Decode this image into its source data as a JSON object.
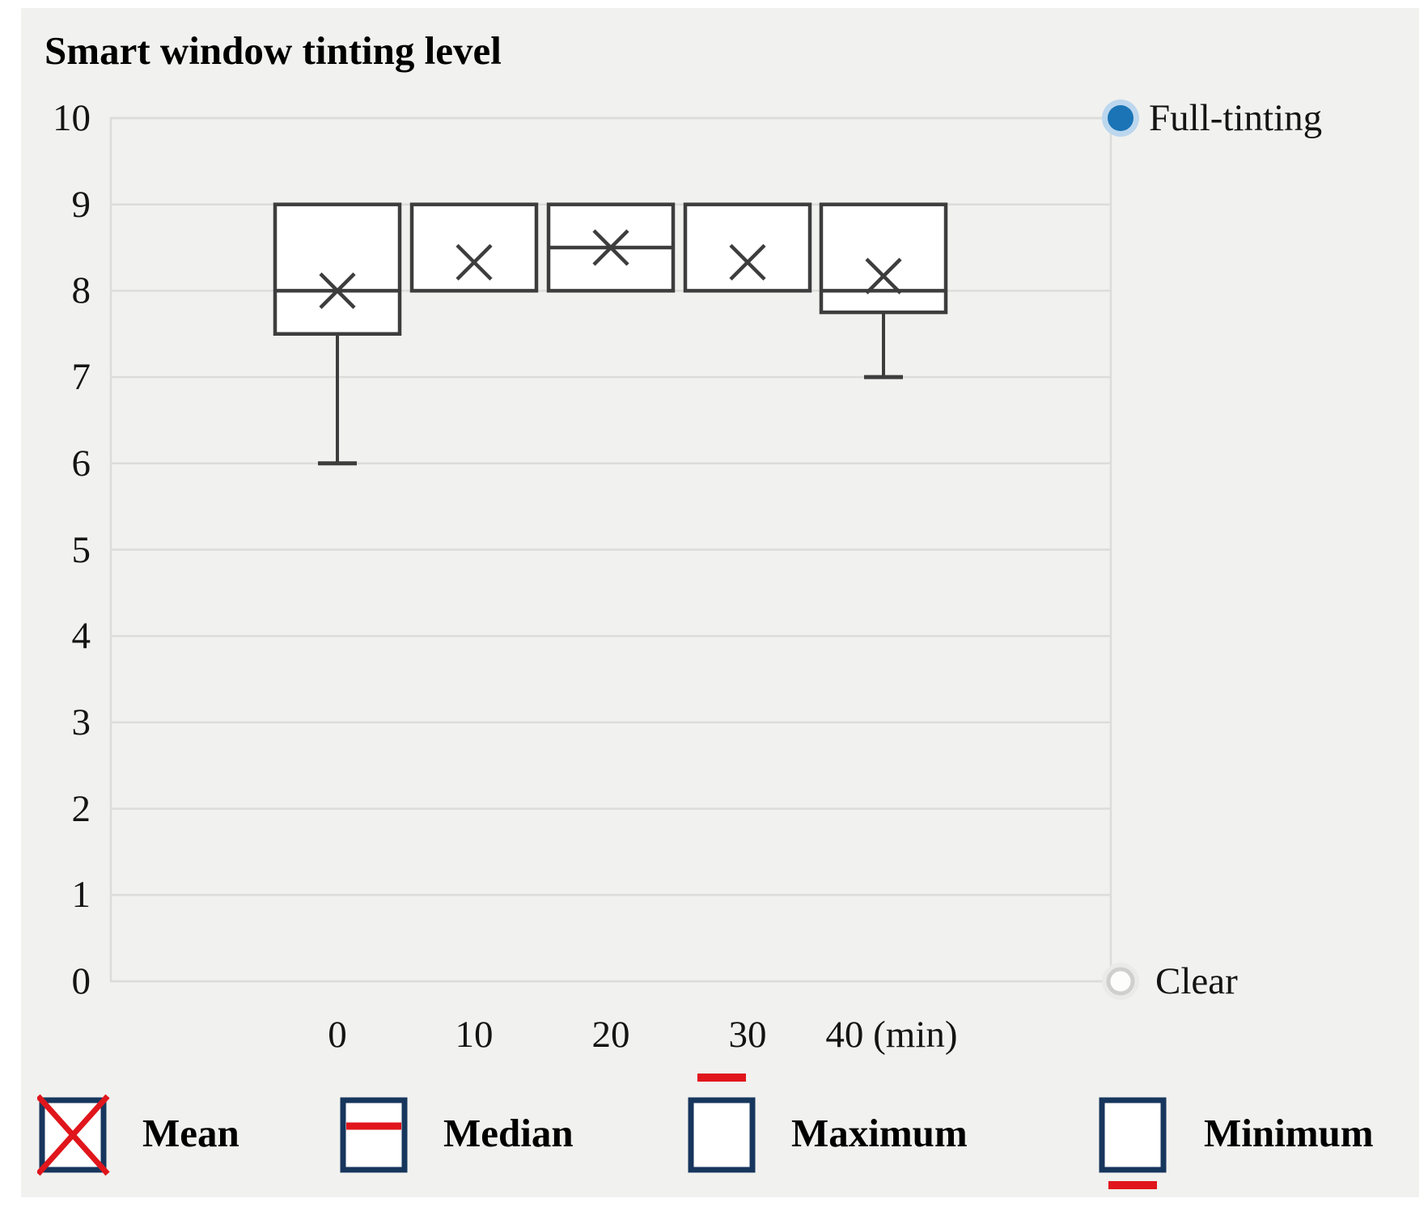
{
  "title": "Smart window tinting level",
  "chart_data": {
    "type": "boxplot",
    "title": "Smart window tinting level",
    "x_tick_labels": [
      "0",
      "10",
      "20",
      "30",
      "40 (min)"
    ],
    "categories": [
      0,
      10,
      20,
      30,
      40
    ],
    "x_unit": "min",
    "ylim": [
      0,
      10
    ],
    "y_ticks": [
      0,
      1,
      2,
      3,
      4,
      5,
      6,
      7,
      8,
      9,
      10
    ],
    "grid": true,
    "series": [
      {
        "t": 0,
        "min": 6,
        "q1": 7.5,
        "median": 8,
        "q3": 9,
        "max": 9,
        "mean": 8.0
      },
      {
        "t": 10,
        "min": 8,
        "q1": 8,
        "median": 8,
        "q3": 9,
        "max": 9,
        "mean": 8.33
      },
      {
        "t": 20,
        "min": 8,
        "q1": 8,
        "median": 8.5,
        "q3": 9,
        "max": 9,
        "mean": 8.5
      },
      {
        "t": 30,
        "min": 8,
        "q1": 8,
        "median": 8,
        "q3": 9,
        "max": 9,
        "mean": 8.33
      },
      {
        "t": 40,
        "min": 7,
        "q1": 7.75,
        "median": 8,
        "q3": 9,
        "max": 9,
        "mean": 8.17
      }
    ],
    "endpoints": [
      {
        "label": "Full-tinting",
        "value": 10,
        "marker": "filled-blue-circle"
      },
      {
        "label": "Clear",
        "value": 0,
        "marker": "open-circle"
      }
    ],
    "legend_position": "bottom"
  },
  "legend": {
    "items": [
      {
        "label": "Mean",
        "icon": "box-with-red-x"
      },
      {
        "label": "Median",
        "icon": "box-with-red-median-line"
      },
      {
        "label": "Maximum",
        "icon": "red-line-above-box"
      },
      {
        "label": "Minimum",
        "icon": "red-line-below-box"
      }
    ]
  },
  "colors": {
    "panel_bg": "#f1f1ef",
    "grid": "#dcdcda",
    "box_stroke": "#3d3d3d",
    "box_fill": "#ffffff",
    "legend_box_border": "#17365d",
    "legend_red": "#e0161c",
    "full_tint_dot": "#1a74b6",
    "full_tint_halo": "#bcd7ee",
    "clear_dot_fill": "#fdfdfc",
    "clear_dot_stroke": "#cfcfcd",
    "clear_dot_halo": "#eaeae8"
  }
}
